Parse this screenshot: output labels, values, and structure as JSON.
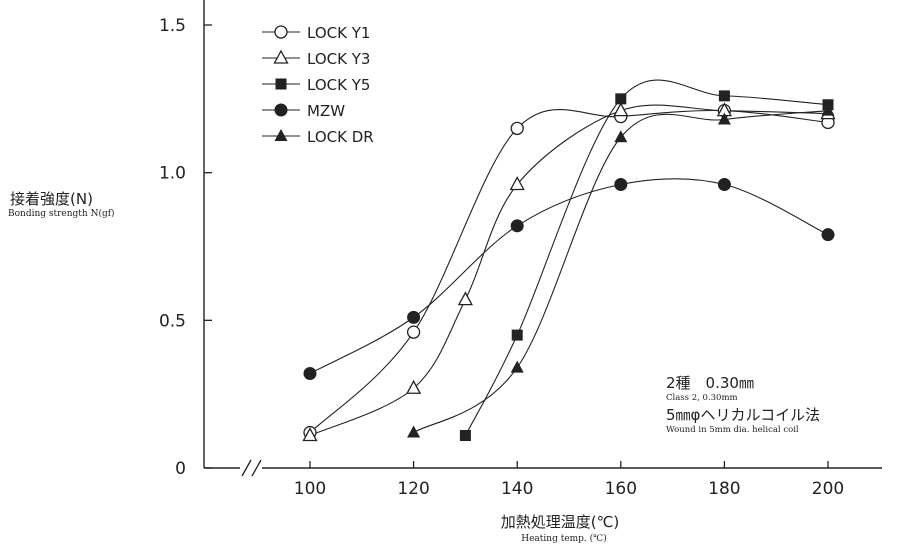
{
  "chart_data": {
    "type": "line",
    "xlabel": "加熱処理温度(℃)",
    "xlabel_en": "Heating temp. (℃)",
    "ylabel": "接着強度(N)",
    "ylabel_en": "Bonding strength  N(gf)",
    "x_ticks": [
      "100",
      "120",
      "140",
      "160",
      "180",
      "200"
    ],
    "y_ticks": [
      "0",
      "0.5",
      "1.0",
      "1.5"
    ],
    "xlim": [
      100,
      200
    ],
    "ylim": [
      0,
      1.5
    ],
    "x_axis_break": true,
    "grid": false,
    "legend_position": "top-left",
    "series": [
      {
        "name": "LOCK Y1",
        "marker": "circle-open",
        "points": [
          [
            100,
            0.12
          ],
          [
            120,
            0.46
          ],
          [
            140,
            1.15
          ],
          [
            160,
            1.19
          ],
          [
            180,
            1.21
          ],
          [
            200,
            1.17
          ]
        ]
      },
      {
        "name": "LOCK Y3",
        "marker": "triangle-open",
        "points": [
          [
            100,
            0.11
          ],
          [
            120,
            0.27
          ],
          [
            130,
            0.57
          ],
          [
            140,
            0.96
          ],
          [
            160,
            1.21
          ],
          [
            180,
            1.21
          ],
          [
            200,
            1.2
          ]
        ]
      },
      {
        "name": "LOCK Y5",
        "marker": "square-filled",
        "points": [
          [
            130,
            0.11
          ],
          [
            140,
            0.45
          ],
          [
            160,
            1.25
          ],
          [
            180,
            1.26
          ],
          [
            200,
            1.23
          ]
        ]
      },
      {
        "name": "MZW",
        "marker": "circle-filled",
        "points": [
          [
            100,
            0.32
          ],
          [
            120,
            0.51
          ],
          [
            140,
            0.82
          ],
          [
            160,
            0.96
          ],
          [
            180,
            0.96
          ],
          [
            200,
            0.79
          ]
        ]
      },
      {
        "name": "LOCK DR",
        "marker": "triangle-filled",
        "points": [
          [
            120,
            0.12
          ],
          [
            140,
            0.34
          ],
          [
            160,
            1.12
          ],
          [
            180,
            1.18
          ],
          [
            200,
            1.21
          ]
        ]
      }
    ],
    "annotation": {
      "line1": "2種　0.30㎜",
      "line1_en": "Class 2,  0.30mm",
      "line2": "5㎜φヘリカルコイル法",
      "line2_en": "Wound in 5mm dia. helical coil"
    }
  }
}
